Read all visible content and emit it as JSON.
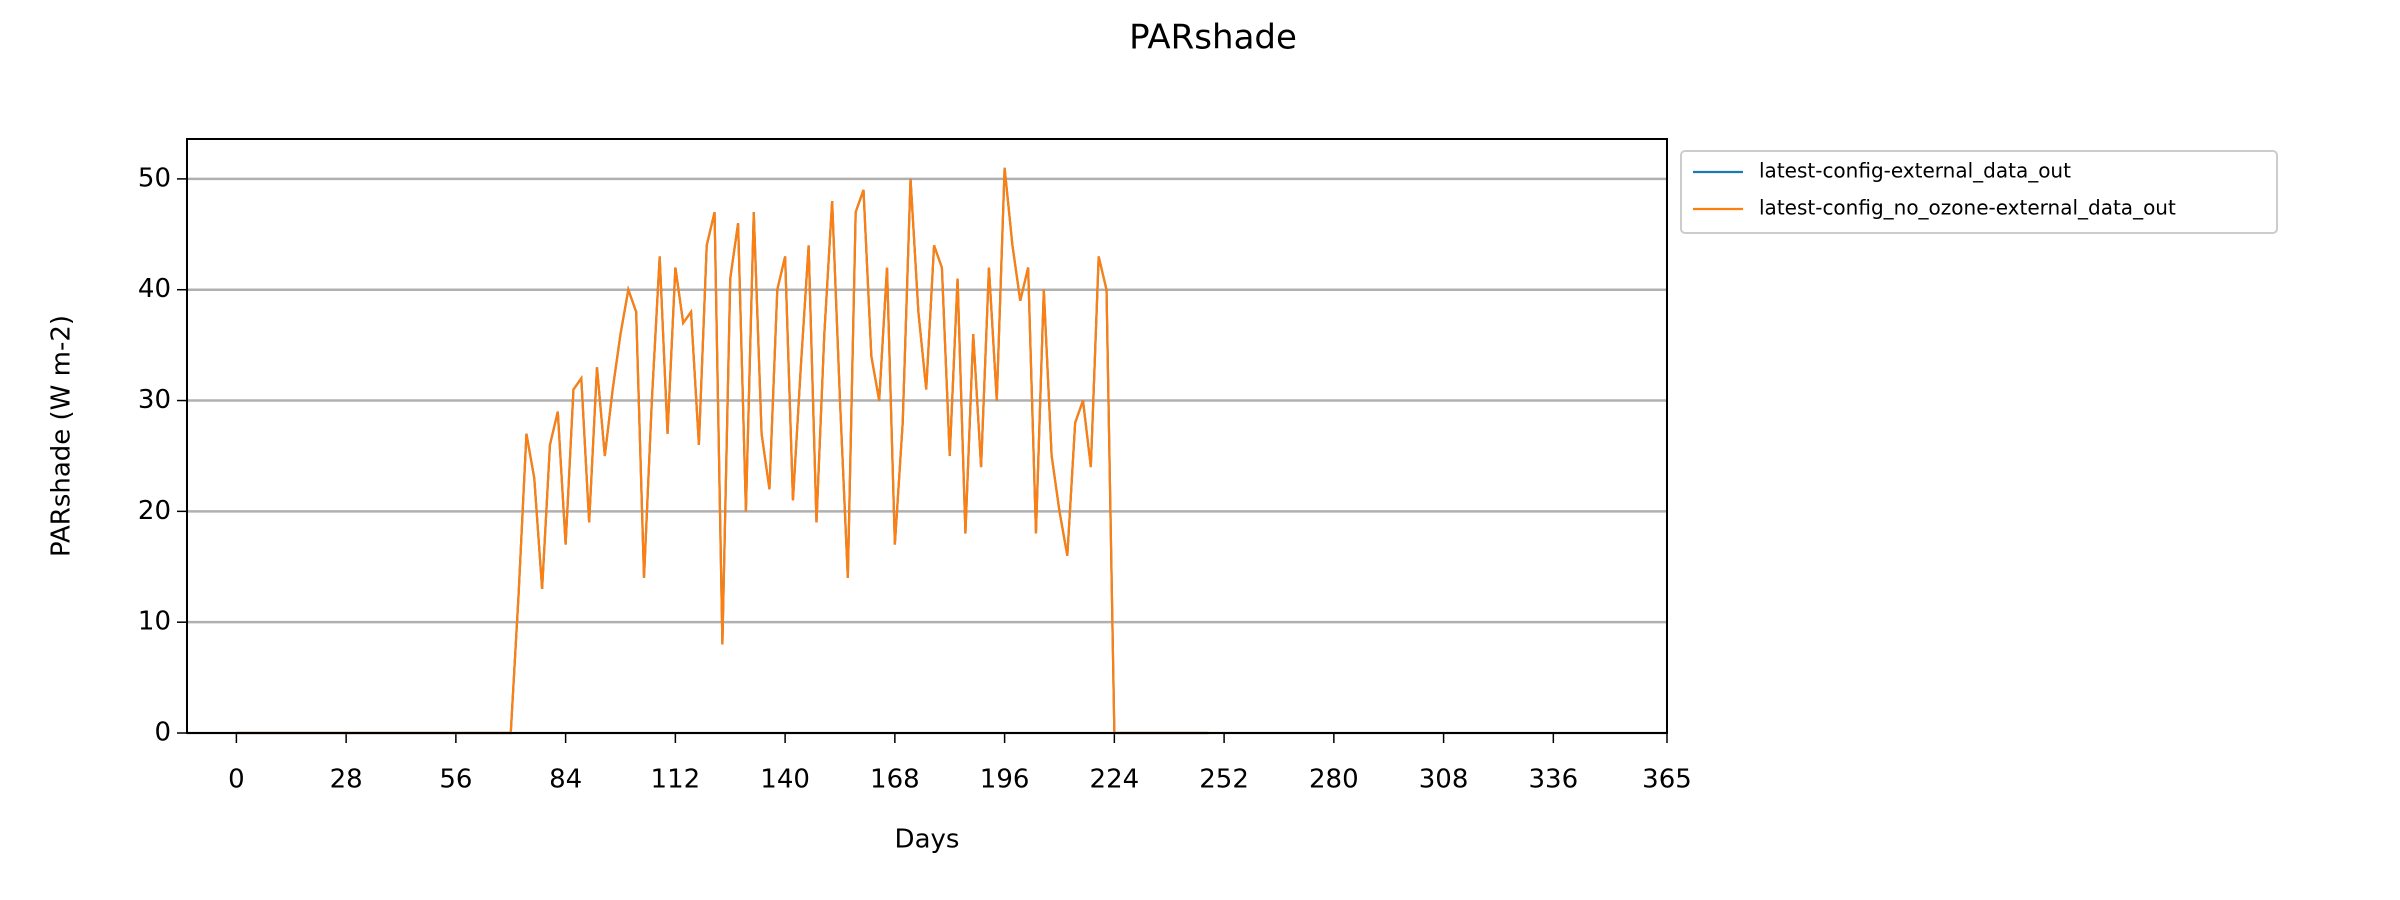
{
  "chart_data": {
    "type": "line",
    "title": "PARshade",
    "xlabel": "Days",
    "ylabel": "PARshade (W m-2)",
    "x": [
      0,
      2,
      4,
      6,
      8,
      10,
      12,
      14,
      16,
      18,
      20,
      22,
      24,
      26,
      28,
      30,
      32,
      34,
      36,
      38,
      40,
      42,
      44,
      46,
      48,
      50,
      52,
      54,
      56,
      58,
      60,
      62,
      64,
      66,
      68,
      70,
      72,
      74,
      76,
      78,
      80,
      82,
      84,
      86,
      88,
      90,
      92,
      94,
      96,
      98,
      100,
      102,
      104,
      106,
      108,
      110,
      112,
      114,
      116,
      118,
      120,
      122,
      124,
      126,
      128,
      130,
      132,
      134,
      136,
      138,
      140,
      142,
      144,
      146,
      148,
      150,
      152,
      154,
      156,
      158,
      160,
      162,
      164,
      166,
      168,
      170,
      172,
      174,
      176,
      178,
      180,
      182,
      184,
      186,
      188,
      190,
      192,
      194,
      196,
      198,
      200,
      202,
      204,
      206,
      208,
      210,
      212,
      214,
      216,
      218,
      220,
      222,
      224,
      226,
      228,
      230,
      232,
      234,
      236,
      238,
      240,
      242,
      244,
      246,
      248
    ],
    "series": [
      {
        "name": "latest-config-external_data_out",
        "color": "#1f77b4",
        "values": [
          0,
          0,
          0,
          0,
          0,
          0,
          0,
          0,
          0,
          0,
          0,
          0,
          0,
          0,
          0,
          0,
          0,
          0,
          0,
          0,
          0,
          0,
          0,
          0,
          0,
          0,
          0,
          0,
          0,
          0,
          0,
          0,
          0,
          0,
          0,
          0,
          12.5,
          27,
          23,
          13,
          26,
          29,
          17,
          31,
          32,
          19,
          33,
          25,
          31,
          36,
          40,
          38,
          14,
          30,
          43,
          27,
          42,
          37,
          38,
          26,
          44,
          47,
          8,
          41,
          46,
          20,
          47,
          27,
          22,
          40,
          43,
          21,
          33,
          44,
          19,
          36,
          48,
          30,
          14,
          47,
          49,
          34,
          30,
          42,
          17,
          28,
          50,
          38,
          31,
          44,
          42,
          25,
          41,
          18,
          36,
          24,
          42,
          30,
          51,
          44,
          39,
          42,
          18,
          40,
          25,
          20,
          16,
          28,
          30,
          24,
          43,
          40,
          0,
          0,
          0,
          0,
          0,
          0,
          0,
          0,
          0,
          0,
          0,
          0,
          0
        ]
      },
      {
        "name": "latest-config_no_ozone-external_data_out",
        "color": "#ff7f0e",
        "values": [
          0,
          0,
          0,
          0,
          0,
          0,
          0,
          0,
          0,
          0,
          0,
          0,
          0,
          0,
          0,
          0,
          0,
          0,
          0,
          0,
          0,
          0,
          0,
          0,
          0,
          0,
          0,
          0,
          0,
          0,
          0,
          0,
          0,
          0,
          0,
          0,
          12.5,
          27,
          23,
          13,
          26,
          29,
          17,
          31,
          32,
          19,
          33,
          25,
          31,
          36,
          40,
          38,
          14,
          30,
          43,
          27,
          42,
          37,
          38,
          26,
          44,
          47,
          8,
          41,
          46,
          20,
          47,
          27,
          22,
          40,
          43,
          21,
          33,
          44,
          19,
          36,
          48,
          30,
          14,
          47,
          49,
          34,
          30,
          42,
          17,
          28,
          50,
          38,
          31,
          44,
          42,
          25,
          41,
          18,
          36,
          24,
          42,
          30,
          51,
          44,
          39,
          42,
          18,
          40,
          25,
          20,
          16,
          28,
          30,
          24,
          43,
          40,
          0,
          0,
          0,
          0,
          0,
          0,
          0,
          0,
          0,
          0,
          0,
          0,
          0
        ]
      }
    ],
    "xlim": [
      -12.6,
      365
    ],
    "xticks": [
      0,
      28,
      56,
      84,
      112,
      140,
      168,
      196,
      224,
      252,
      280,
      308,
      336,
      365
    ],
    "ylim": [
      0,
      53.6
    ],
    "yticks": [
      0,
      10,
      20,
      30,
      40,
      50
    ],
    "grid": true,
    "legend": "outside upper right"
  }
}
